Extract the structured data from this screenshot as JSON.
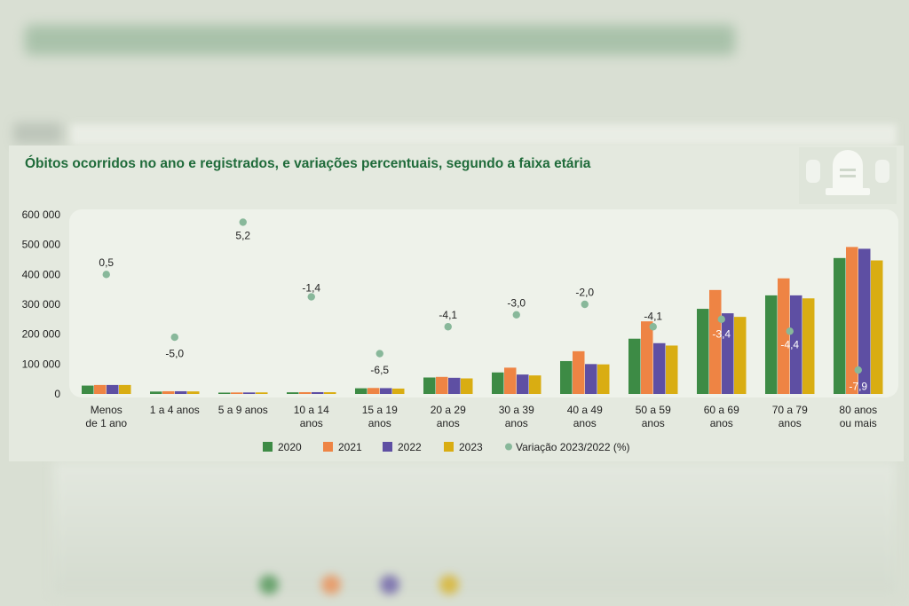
{
  "chart_data": {
    "type": "bar",
    "title": "Óbitos ocorridos no ano e registrados, e variações percentuais, segundo a faixa etária",
    "categories": [
      [
        "Menos",
        "de 1 ano"
      ],
      [
        "1 a 4 anos"
      ],
      [
        "5 a 9 anos"
      ],
      [
        "10 a 14",
        "anos"
      ],
      [
        "15 a 19",
        "anos"
      ],
      [
        "20 a 29",
        "anos"
      ],
      [
        "30 a 39",
        "anos"
      ],
      [
        "40 a 49",
        "anos"
      ],
      [
        "50 a 59",
        "anos"
      ],
      [
        "60 a 69",
        "anos"
      ],
      [
        "70 a 79",
        "anos"
      ],
      [
        "80 anos",
        "ou mais"
      ]
    ],
    "ylim": [
      0,
      600000
    ],
    "yticks": [
      0,
      100000,
      200000,
      300000,
      400000,
      500000,
      600000
    ],
    "ytick_labels": [
      "0",
      "100 000",
      "200 000",
      "300 000",
      "400 000",
      "500 000",
      "600 000"
    ],
    "series": [
      {
        "name": "2020",
        "color": "#3d8b45",
        "values": [
          28000,
          8000,
          4500,
          5500,
          19000,
          55000,
          72000,
          110000,
          185000,
          285000,
          330000,
          455000
        ]
      },
      {
        "name": "2021",
        "color": "#ee8444",
        "values": [
          30000,
          9000,
          5000,
          6000,
          20000,
          57000,
          88000,
          143000,
          243000,
          348000,
          387000,
          492000
        ]
      },
      {
        "name": "2022",
        "color": "#5e4fa3",
        "values": [
          30000,
          9000,
          5000,
          6000,
          19500,
          54000,
          65000,
          100000,
          170000,
          270000,
          330000,
          486000
        ]
      },
      {
        "name": "2023",
        "color": "#d9ad12",
        "values": [
          30000,
          8500,
          5200,
          5800,
          18000,
          52000,
          62000,
          99000,
          162000,
          258000,
          320000,
          447000
        ]
      }
    ],
    "variation": {
      "name": "Variação 2023/2022 (%)",
      "color": "#88b89a",
      "marker_y": [
        400000,
        190000,
        575000,
        325000,
        135000,
        225000,
        265000,
        300000,
        225000,
        250000,
        210000,
        80000
      ],
      "labels": [
        "0,5",
        "-5,0",
        "5,2",
        "-1,4",
        "-6,5",
        "-4,1",
        "-3,0",
        "-2,0",
        "-4,1",
        "-3,4",
        "-4,4",
        "-7,9"
      ],
      "label_y": [
        440000,
        135000,
        530000,
        355000,
        80000,
        265000,
        305000,
        340000,
        260000,
        200000,
        165000,
        25000
      ]
    },
    "legend_position": "bottom-center",
    "grid": false
  }
}
